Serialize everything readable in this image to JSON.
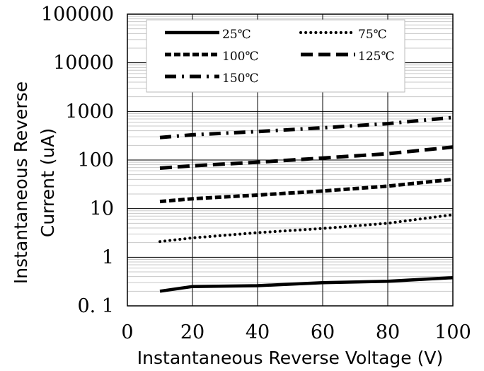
{
  "chart_data": {
    "type": "line",
    "xlabel": "Instantaneous Reverse Voltage (V)",
    "ylabel_lines": [
      "Instantaneous Reverse",
      "Current (uA)"
    ],
    "xlim": [
      0,
      100
    ],
    "ylim": [
      0.1,
      100000
    ],
    "yscale": "log",
    "grid": true,
    "legend_position": "top",
    "x_ticks": [
      "0",
      "20",
      "40",
      "60",
      "80",
      "100"
    ],
    "y_ticks": [
      "0. 1",
      "1",
      "10",
      "100",
      "1000",
      "10000",
      "100000"
    ],
    "series": [
      {
        "name": "25℃",
        "dash": "solid",
        "x": [
          10,
          20,
          40,
          60,
          80,
          100
        ],
        "y": [
          0.2,
          0.25,
          0.26,
          0.3,
          0.32,
          0.38
        ]
      },
      {
        "name": "75℃",
        "dash": "dotted",
        "x": [
          10,
          20,
          40,
          60,
          80,
          100
        ],
        "y": [
          2.1,
          2.5,
          3.2,
          3.9,
          5.0,
          7.5
        ]
      },
      {
        "name": "100℃",
        "dash": "dashed",
        "x": [
          10,
          20,
          40,
          60,
          80,
          100
        ],
        "y": [
          14,
          16,
          19,
          23,
          29,
          40
        ]
      },
      {
        "name": "125℃",
        "dash": "longdash",
        "x": [
          10,
          20,
          40,
          60,
          80,
          100
        ],
        "y": [
          68,
          76,
          90,
          110,
          135,
          185
        ]
      },
      {
        "name": "150℃",
        "dash": "dashdot",
        "x": [
          10,
          20,
          40,
          60,
          80,
          100
        ],
        "y": [
          290,
          330,
          385,
          460,
          560,
          750
        ]
      }
    ]
  }
}
